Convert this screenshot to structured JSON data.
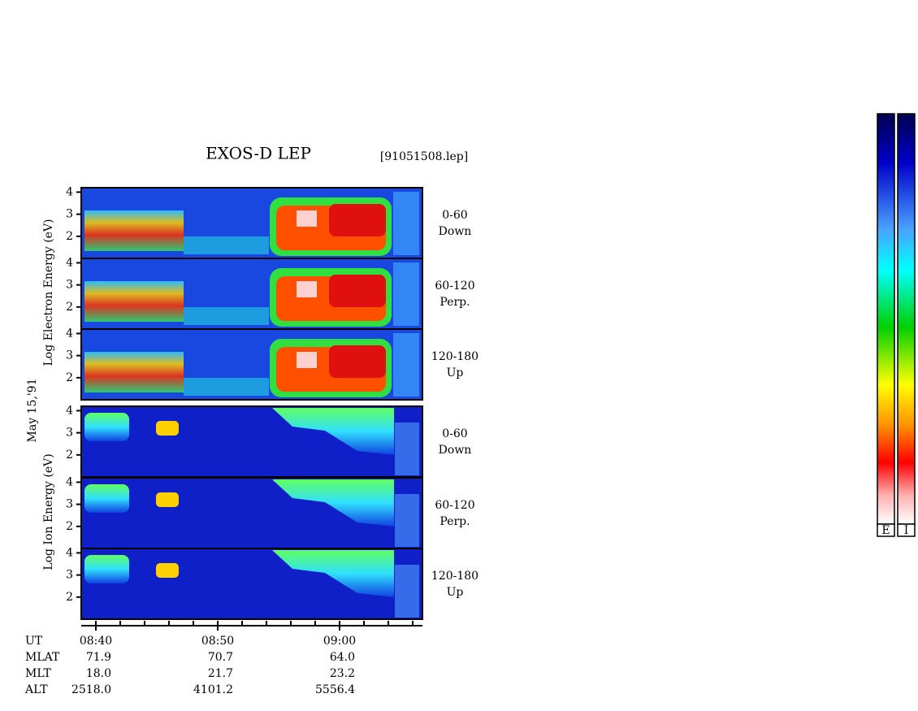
{
  "title": "EXOS-D LEP",
  "file": "[91051508.lep]",
  "date": "May 15,'91",
  "electron_label": "Log  Electron  Energy  (eV)",
  "ion_label": "Log  Ion  Energy  (eV)",
  "energy_axis": {
    "ylim": [
      1,
      4.2
    ],
    "yticks": [
      2,
      3,
      4
    ]
  },
  "panels": [
    {
      "species": "electron",
      "angle": "0-60",
      "direction": "Down"
    },
    {
      "species": "electron",
      "angle": "60-120",
      "direction": "Perp."
    },
    {
      "species": "electron",
      "angle": "120-180",
      "direction": "Up"
    },
    {
      "species": "ion",
      "angle": "0-60",
      "direction": "Down"
    },
    {
      "species": "ion",
      "angle": "60-120",
      "direction": "Perp."
    },
    {
      "species": "ion",
      "angle": "120-180",
      "direction": "Up"
    }
  ],
  "time_axis": {
    "xlim": [
      38.8,
      66.8
    ],
    "xticks": [
      {
        "value": 40,
        "label": "08:40"
      },
      {
        "value": 50,
        "label": "08:50"
      },
      {
        "value": 60,
        "label": "09:00"
      }
    ],
    "minor_ticks": [
      40,
      42,
      44,
      46,
      48,
      50,
      52,
      54,
      56,
      58,
      60,
      62,
      64,
      66
    ]
  },
  "orbit_table": {
    "rows": [
      [
        "UT"
      ],
      [
        "MLAT",
        "71.9",
        "70.7",
        "64.0"
      ],
      [
        "MLT",
        "18.0",
        "21.7",
        "23.2"
      ],
      [
        "ALT",
        "2518.0",
        "4101.2",
        "5556.4"
      ]
    ]
  },
  "colorbars": [
    "E",
    "I"
  ]
}
